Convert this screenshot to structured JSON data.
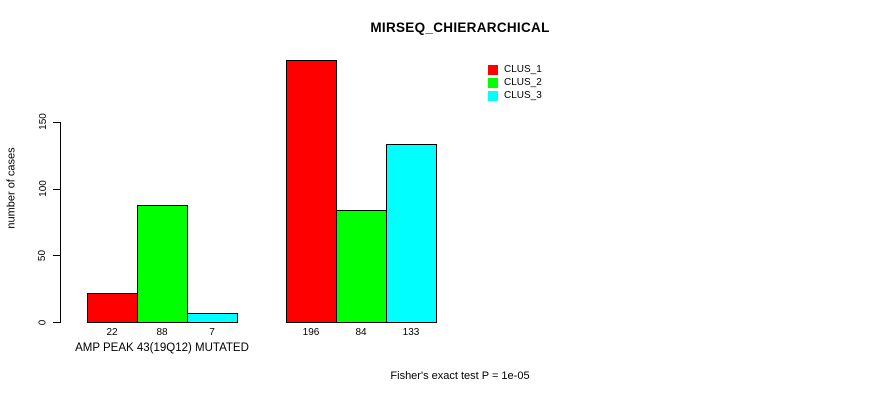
{
  "chart_data": {
    "type": "bar",
    "title": "MIRSEQ_CHIERARCHICAL",
    "ylabel": "number of cases",
    "xlabel": "",
    "ylim": [
      0,
      210
    ],
    "yticks": [
      0,
      50,
      100,
      150
    ],
    "grid": false,
    "legend_position": "top-right",
    "categories": [
      "AMP PEAK 43(19Q12) MUTATED",
      ""
    ],
    "series": [
      {
        "name": "CLUS_1",
        "color": "#ff0000",
        "values": [
          22,
          196
        ]
      },
      {
        "name": "CLUS_2",
        "color": "#00ff00",
        "values": [
          88,
          84
        ]
      },
      {
        "name": "CLUS_3",
        "color": "#00ffff",
        "values": [
          7,
          133
        ]
      }
    ],
    "bar_value_labels": [
      [
        22,
        88,
        7
      ],
      [
        196,
        84,
        133
      ]
    ],
    "annotation": "Fisher's exact test P = 1e-05",
    "bar_border_color": "#000000",
    "background_color": "#ffffff"
  }
}
